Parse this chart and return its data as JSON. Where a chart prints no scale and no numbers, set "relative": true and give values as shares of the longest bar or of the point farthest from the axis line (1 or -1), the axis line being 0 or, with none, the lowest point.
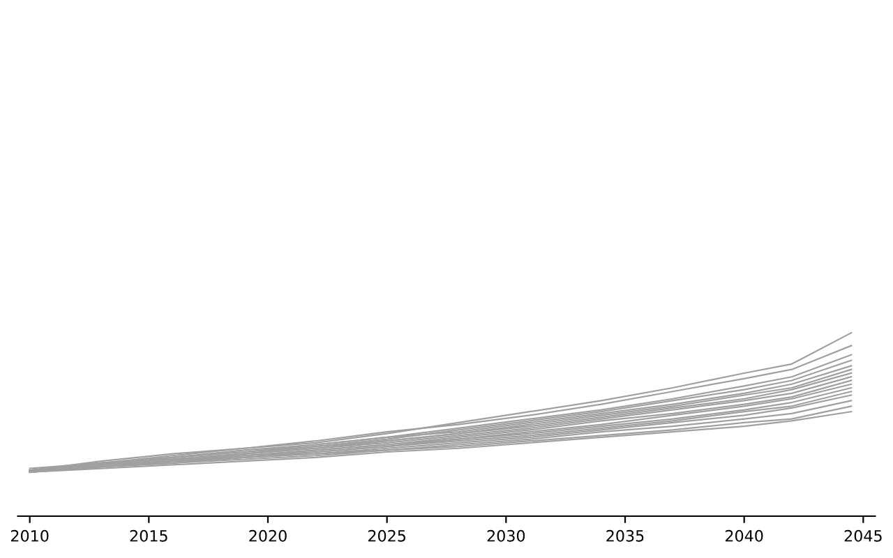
{
  "chart_data": {
    "type": "line",
    "relative": true,
    "x": [
      2010,
      2013,
      2016,
      2019,
      2022,
      2025,
      2028,
      2031,
      2034,
      2037,
      2040,
      2042,
      2044.5
    ],
    "xlim": [
      2009.5,
      2045.5
    ],
    "xticks": [
      2010,
      2015,
      2020,
      2025,
      2030,
      2035,
      2040,
      2045
    ],
    "grid": false,
    "legend": false,
    "marker": "none",
    "line_style": "solid",
    "series": [
      {
        "color": "#a0a0a0",
        "values": [
          0.25,
          0.3,
          0.34,
          0.37,
          0.4,
          0.45,
          0.51,
          0.57,
          0.63,
          0.7,
          0.78,
          0.83,
          1.0
        ]
      },
      {
        "color": "#a0a0a0",
        "values": [
          0.25,
          0.29,
          0.33,
          0.37,
          0.41,
          0.46,
          0.5,
          0.55,
          0.61,
          0.68,
          0.75,
          0.8,
          0.93
        ]
      },
      {
        "color": "#a0a0a0",
        "values": [
          0.25,
          0.29,
          0.32,
          0.35,
          0.39,
          0.43,
          0.48,
          0.53,
          0.58,
          0.64,
          0.71,
          0.76,
          0.88
        ]
      },
      {
        "color": "#a0a0a0",
        "values": [
          0.25,
          0.28,
          0.32,
          0.35,
          0.38,
          0.42,
          0.47,
          0.52,
          0.57,
          0.63,
          0.69,
          0.74,
          0.85
        ]
      },
      {
        "color": "#a0a0a0",
        "values": [
          0.26,
          0.29,
          0.32,
          0.36,
          0.39,
          0.43,
          0.46,
          0.51,
          0.56,
          0.61,
          0.67,
          0.72,
          0.82
        ]
      },
      {
        "color": "#a0a0a0",
        "values": [
          0.25,
          0.29,
          0.31,
          0.34,
          0.38,
          0.41,
          0.45,
          0.5,
          0.55,
          0.6,
          0.66,
          0.7,
          0.8
        ]
      },
      {
        "color": "#a0a0a0",
        "values": [
          0.24,
          0.28,
          0.31,
          0.34,
          0.37,
          0.41,
          0.45,
          0.49,
          0.54,
          0.59,
          0.64,
          0.69,
          0.78
        ]
      },
      {
        "color": "#a0a0a0",
        "values": [
          0.25,
          0.28,
          0.31,
          0.34,
          0.37,
          0.4,
          0.44,
          0.48,
          0.53,
          0.58,
          0.63,
          0.67,
          0.76
        ]
      },
      {
        "color": "#a0a0a0",
        "values": [
          0.25,
          0.28,
          0.31,
          0.33,
          0.36,
          0.39,
          0.43,
          0.47,
          0.52,
          0.56,
          0.61,
          0.65,
          0.74
        ]
      },
      {
        "color": "#a0a0a0",
        "values": [
          0.24,
          0.28,
          0.3,
          0.33,
          0.36,
          0.39,
          0.42,
          0.46,
          0.5,
          0.55,
          0.6,
          0.64,
          0.72
        ]
      },
      {
        "color": "#a0a0a0",
        "values": [
          0.25,
          0.27,
          0.3,
          0.33,
          0.35,
          0.38,
          0.42,
          0.45,
          0.49,
          0.53,
          0.58,
          0.62,
          0.7
        ]
      },
      {
        "color": "#a0a0a0",
        "values": [
          0.24,
          0.27,
          0.3,
          0.32,
          0.35,
          0.38,
          0.41,
          0.44,
          0.48,
          0.52,
          0.57,
          0.6,
          0.68
        ]
      },
      {
        "color": "#a0a0a0",
        "values": [
          0.25,
          0.28,
          0.3,
          0.32,
          0.34,
          0.37,
          0.4,
          0.43,
          0.47,
          0.51,
          0.55,
          0.59,
          0.66
        ]
      },
      {
        "color": "#a0a0a0",
        "values": [
          0.24,
          0.27,
          0.29,
          0.32,
          0.34,
          0.36,
          0.39,
          0.42,
          0.46,
          0.49,
          0.53,
          0.56,
          0.63
        ]
      },
      {
        "color": "#a0a0a0",
        "values": [
          0.24,
          0.27,
          0.29,
          0.31,
          0.33,
          0.36,
          0.38,
          0.41,
          0.44,
          0.47,
          0.51,
          0.53,
          0.6
        ]
      },
      {
        "color": "#a0a0a0",
        "values": [
          0.24,
          0.26,
          0.28,
          0.3,
          0.32,
          0.35,
          0.37,
          0.4,
          0.43,
          0.46,
          0.49,
          0.52,
          0.57
        ]
      }
    ]
  }
}
